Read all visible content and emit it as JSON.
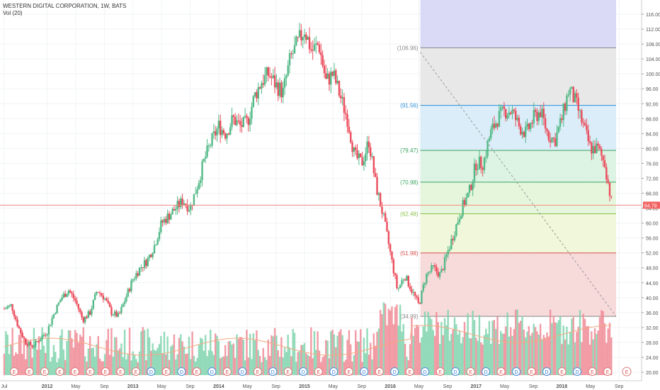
{
  "header": {
    "symbol_line": "WESTERN DIGITAL CORPORATION, 1W, BATS",
    "volume_label": "Vol (20)"
  },
  "colors": {
    "up": "#53b987",
    "down": "#eb4d5c",
    "vol_up": "#7fd3ad",
    "vol_down": "#f08a95",
    "price_line": "#f28b82",
    "vol_ma": "#f5a97f",
    "price_badge": "#f26262"
  },
  "chart_data": {
    "type": "candlestick",
    "title": "WESTERN DIGITAL CORPORATION, 1W, BATS",
    "ylim": [
      18,
      118
    ],
    "y_ticks": [
      "116.00",
      "112.00",
      "108.00",
      "104.00",
      "100.00",
      "96.00",
      "92.00",
      "88.00",
      "84.00",
      "80.00",
      "76.00",
      "72.00",
      "68.00",
      "64.00",
      "60.00",
      "56.00",
      "52.00",
      "48.00",
      "44.00",
      "40.00",
      "36.00",
      "32.00",
      "28.00",
      "24.00",
      "20.00"
    ],
    "x_ticks": [
      "Jul",
      "2012",
      "May",
      "Sep",
      "2013",
      "May",
      "Sep",
      "2014",
      "May",
      "Sep",
      "2015",
      "May",
      "Sep",
      "2016",
      "May",
      "Sep",
      "2017",
      "May",
      "Sep",
      "2018",
      "May",
      "Sep"
    ],
    "last_price": "64.79",
    "price_path": [
      {
        "t": "2011-07",
        "v": 37
      },
      {
        "t": "2011-08",
        "v": 38
      },
      {
        "t": "2011-09",
        "v": 32
      },
      {
        "t": "2011-10",
        "v": 28
      },
      {
        "t": "2011-11",
        "v": 27
      },
      {
        "t": "2011-12",
        "v": 29
      },
      {
        "t": "2012-01",
        "v": 31
      },
      {
        "t": "2012-02",
        "v": 36
      },
      {
        "t": "2012-03",
        "v": 40
      },
      {
        "t": "2012-04",
        "v": 42
      },
      {
        "t": "2012-05",
        "v": 39
      },
      {
        "t": "2012-06",
        "v": 34
      },
      {
        "t": "2012-07",
        "v": 36
      },
      {
        "t": "2012-08",
        "v": 42
      },
      {
        "t": "2012-09",
        "v": 40
      },
      {
        "t": "2012-10",
        "v": 36
      },
      {
        "t": "2012-11",
        "v": 35
      },
      {
        "t": "2012-12",
        "v": 40
      },
      {
        "t": "2013-01",
        "v": 45
      },
      {
        "t": "2013-02",
        "v": 48
      },
      {
        "t": "2013-03",
        "v": 50
      },
      {
        "t": "2013-04",
        "v": 54
      },
      {
        "t": "2013-05",
        "v": 60
      },
      {
        "t": "2013-06",
        "v": 62
      },
      {
        "t": "2013-07",
        "v": 64
      },
      {
        "t": "2013-08",
        "v": 66
      },
      {
        "t": "2013-09",
        "v": 64
      },
      {
        "t": "2013-10",
        "v": 70
      },
      {
        "t": "2013-11",
        "v": 77
      },
      {
        "t": "2013-12",
        "v": 82
      },
      {
        "t": "2014-01",
        "v": 86
      },
      {
        "t": "2014-02",
        "v": 84
      },
      {
        "t": "2014-03",
        "v": 88
      },
      {
        "t": "2014-04",
        "v": 86
      },
      {
        "t": "2014-05",
        "v": 87
      },
      {
        "t": "2014-06",
        "v": 94
      },
      {
        "t": "2014-07",
        "v": 98
      },
      {
        "t": "2014-08",
        "v": 100
      },
      {
        "t": "2014-09",
        "v": 97
      },
      {
        "t": "2014-10",
        "v": 95
      },
      {
        "t": "2014-11",
        "v": 104
      },
      {
        "t": "2014-12",
        "v": 108
      },
      {
        "t": "2015-01",
        "v": 112
      },
      {
        "t": "2015-02",
        "v": 106
      },
      {
        "t": "2015-03",
        "v": 108
      },
      {
        "t": "2015-04",
        "v": 98
      },
      {
        "t": "2015-05",
        "v": 100
      },
      {
        "t": "2015-06",
        "v": 94
      },
      {
        "t": "2015-07",
        "v": 88
      },
      {
        "t": "2015-08",
        "v": 78
      },
      {
        "t": "2015-09",
        "v": 76
      },
      {
        "t": "2015-10",
        "v": 82
      },
      {
        "t": "2015-11",
        "v": 70
      },
      {
        "t": "2015-12",
        "v": 62
      },
      {
        "t": "2016-01",
        "v": 52
      },
      {
        "t": "2016-02",
        "v": 42
      },
      {
        "t": "2016-03",
        "v": 46
      },
      {
        "t": "2016-04",
        "v": 42
      },
      {
        "t": "2016-05",
        "v": 38
      },
      {
        "t": "2016-06",
        "v": 46
      },
      {
        "t": "2016-07",
        "v": 48
      },
      {
        "t": "2016-08",
        "v": 46
      },
      {
        "t": "2016-09",
        "v": 52
      },
      {
        "t": "2016-10",
        "v": 58
      },
      {
        "t": "2016-11",
        "v": 64
      },
      {
        "t": "2016-12",
        "v": 68
      },
      {
        "t": "2017-01",
        "v": 76
      },
      {
        "t": "2017-02",
        "v": 76
      },
      {
        "t": "2017-03",
        "v": 84
      },
      {
        "t": "2017-04",
        "v": 88
      },
      {
        "t": "2017-05",
        "v": 90
      },
      {
        "t": "2017-06",
        "v": 90
      },
      {
        "t": "2017-07",
        "v": 86
      },
      {
        "t": "2017-08",
        "v": 84
      },
      {
        "t": "2017-09",
        "v": 88
      },
      {
        "t": "2017-10",
        "v": 90
      },
      {
        "t": "2017-11",
        "v": 84
      },
      {
        "t": "2017-12",
        "v": 82
      },
      {
        "t": "2018-01",
        "v": 88
      },
      {
        "t": "2018-02",
        "v": 96
      },
      {
        "t": "2018-03",
        "v": 92
      },
      {
        "t": "2018-04",
        "v": 86
      },
      {
        "t": "2018-05",
        "v": 80
      },
      {
        "t": "2018-06",
        "v": 80
      },
      {
        "t": "2018-07",
        "v": 76
      },
      {
        "t": "2018-08",
        "v": 64.79
      }
    ],
    "fibonacci": {
      "levels": [
        {
          "label": "(106.96)",
          "value": 106.96,
          "color": "#888888",
          "fill": "#e6e6e6"
        },
        {
          "label": "(91.56)",
          "value": 91.56,
          "color": "#2b8fd6",
          "fill": "#d6ebf7"
        },
        {
          "label": "(79.47)",
          "value": 79.47,
          "color": "#3aa55d",
          "fill": "#d9f2e1"
        },
        {
          "label": "(70.98)",
          "value": 70.98,
          "color": "#3aa55d",
          "fill": "#e3f5d9"
        },
        {
          "label": "(62.48)",
          "value": 62.48,
          "color": "#8bc34a",
          "fill": "#eef6d6"
        },
        {
          "label": "(51.98)",
          "value": 51.98,
          "color": "#d9534f",
          "fill": "#f6d6d6"
        },
        {
          "label": "(34.99)",
          "value": 34.99,
          "color": "#888888",
          "fill": null
        }
      ],
      "extension_fill": "#d3d3f6",
      "extension_color": "#9b9be6",
      "start": "2016-05",
      "end": "2018-10"
    },
    "earnings_markers": [
      "E",
      "E",
      "E",
      "E",
      "E",
      "E",
      "E",
      "E",
      "E",
      "D",
      "E",
      "D",
      "E",
      "D",
      "E",
      "D",
      "E",
      "D",
      "E",
      "D",
      "E",
      "D",
      "E",
      "D",
      "E",
      "D",
      "E",
      "D",
      "E",
      "D",
      "E",
      "D",
      "E",
      "D",
      "E",
      "D",
      "E",
      "D",
      "E",
      "E"
    ],
    "next_earnings_marker": "E"
  }
}
